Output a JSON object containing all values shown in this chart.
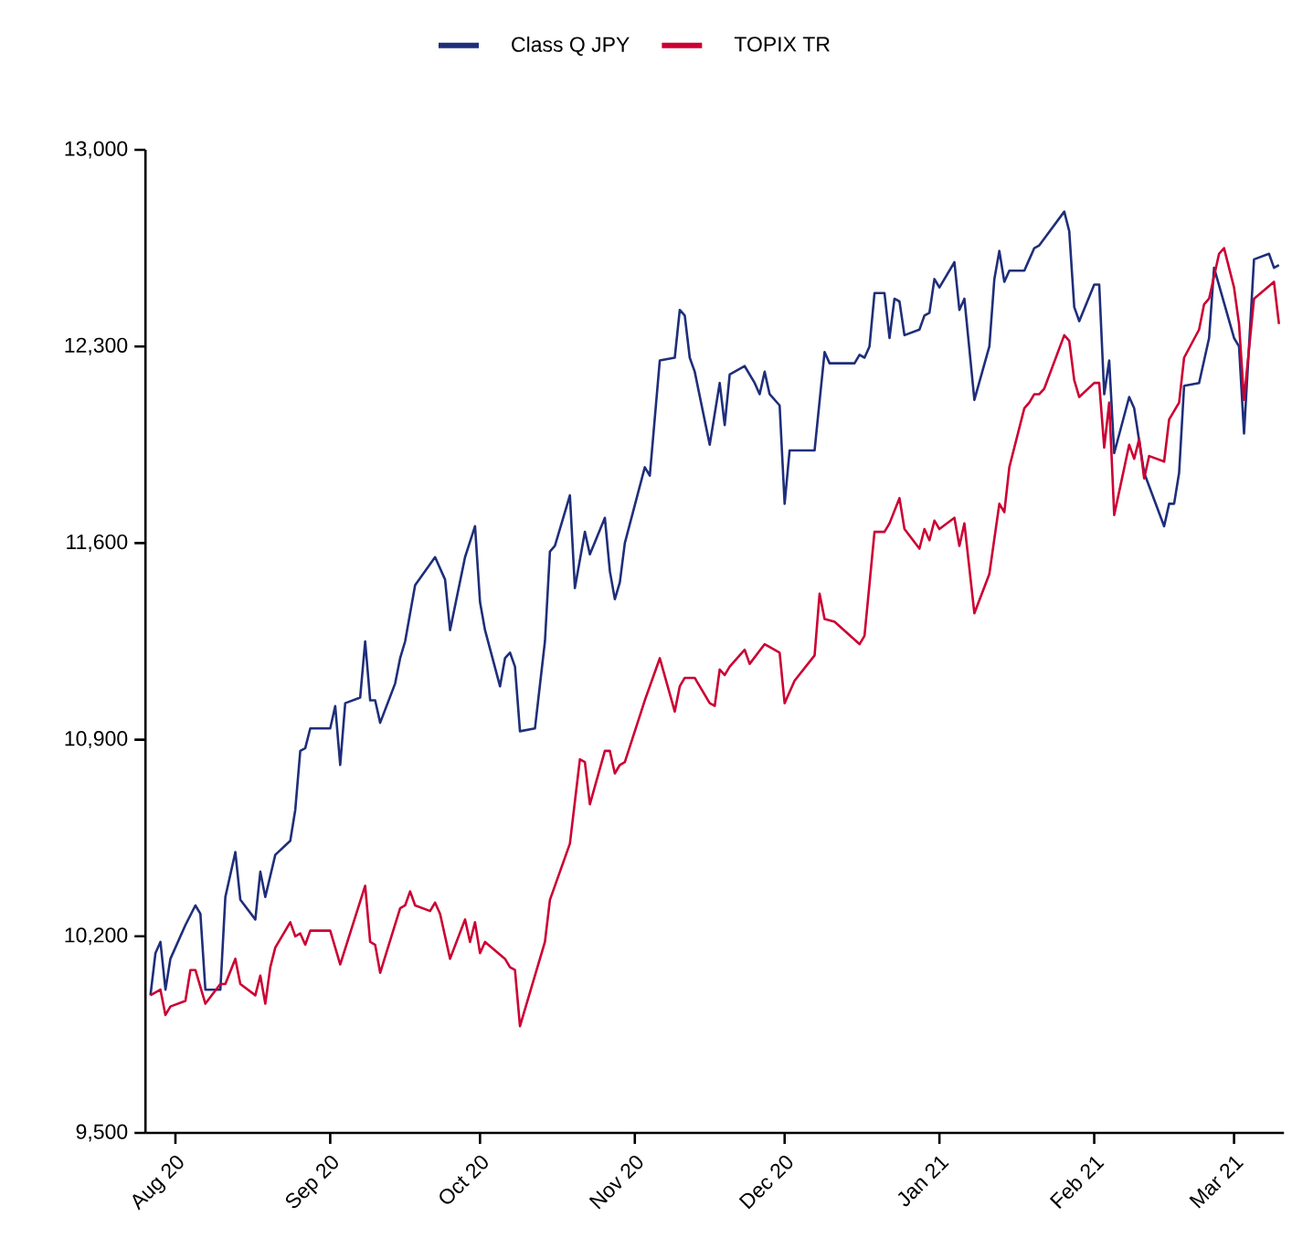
{
  "chart_data": {
    "type": "line",
    "legend": "top",
    "xlim": [
      "2020-07-26",
      "2021-03-11"
    ],
    "xticks": [
      {
        "value": "2020-08-01",
        "label": "Aug 20"
      },
      {
        "value": "2020-09-01",
        "label": "Sep 20"
      },
      {
        "value": "2020-10-01",
        "label": "Oct 20"
      },
      {
        "value": "2020-11-01",
        "label": "Nov 20"
      },
      {
        "value": "2020-12-01",
        "label": "Dec 20"
      },
      {
        "value": "2021-01-01",
        "label": "Jan 21"
      },
      {
        "value": "2021-02-01",
        "label": "Feb 21"
      },
      {
        "value": "2021-03-01",
        "label": "Mar 21"
      }
    ],
    "ylim": [
      9500,
      13000
    ],
    "yticks": [
      {
        "value": 9500,
        "label": "9,500"
      },
      {
        "value": 10200,
        "label": "10,200"
      },
      {
        "value": 10900,
        "label": "10,900"
      },
      {
        "value": 11600,
        "label": "11,600"
      },
      {
        "value": 12300,
        "label": "12,300"
      },
      {
        "value": 13000,
        "label": "13,000"
      }
    ],
    "series": [
      {
        "name": "Class Q JPY",
        "color": "#1f2e7a",
        "x": [
          "2020-07-27",
          "2020-07-28",
          "2020-07-29",
          "2020-07-30",
          "2020-07-31",
          "2020-08-03",
          "2020-08-05",
          "2020-08-06",
          "2020-08-07",
          "2020-08-10",
          "2020-08-11",
          "2020-08-13",
          "2020-08-14",
          "2020-08-17",
          "2020-08-18",
          "2020-08-19",
          "2020-08-21",
          "2020-08-24",
          "2020-08-25",
          "2020-08-26",
          "2020-08-27",
          "2020-08-28",
          "2020-09-01",
          "2020-09-02",
          "2020-09-03",
          "2020-09-04",
          "2020-09-07",
          "2020-09-08",
          "2020-09-09",
          "2020-09-10",
          "2020-09-11",
          "2020-09-14",
          "2020-09-15",
          "2020-09-16",
          "2020-09-18",
          "2020-09-20",
          "2020-09-22",
          "2020-09-24",
          "2020-09-25",
          "2020-09-28",
          "2020-09-30",
          "2020-10-01",
          "2020-10-02",
          "2020-10-05",
          "2020-10-06",
          "2020-10-07",
          "2020-10-08",
          "2020-10-09",
          "2020-10-12",
          "2020-10-14",
          "2020-10-15",
          "2020-10-16",
          "2020-10-19",
          "2020-10-20",
          "2020-10-22",
          "2020-10-23",
          "2020-10-26",
          "2020-10-27",
          "2020-10-28",
          "2020-10-29",
          "2020-10-30",
          "2020-11-03",
          "2020-11-04",
          "2020-11-06",
          "2020-11-09",
          "2020-11-10",
          "2020-11-11",
          "2020-11-12",
          "2020-11-13",
          "2020-11-16",
          "2020-11-18",
          "2020-11-19",
          "2020-11-20",
          "2020-11-23",
          "2020-11-25",
          "2020-11-26",
          "2020-11-27",
          "2020-11-28",
          "2020-11-30",
          "2020-12-01",
          "2020-12-02",
          "2020-12-07",
          "2020-12-09",
          "2020-12-10",
          "2020-12-15",
          "2020-12-16",
          "2020-12-17",
          "2020-12-18",
          "2020-12-19",
          "2020-12-21",
          "2020-12-22",
          "2020-12-23",
          "2020-12-24",
          "2020-12-25",
          "2020-12-28",
          "2020-12-29",
          "2020-12-30",
          "2020-12-31",
          "2021-01-01",
          "2021-01-04",
          "2021-01-05",
          "2021-01-06",
          "2021-01-08",
          "2021-01-11",
          "2021-01-12",
          "2021-01-13",
          "2021-01-14",
          "2021-01-15",
          "2021-01-18",
          "2021-01-19",
          "2021-01-20",
          "2021-01-21",
          "2021-01-26",
          "2021-01-27",
          "2021-01-28",
          "2021-01-29",
          "2021-02-01",
          "2021-02-02",
          "2021-02-03",
          "2021-02-04",
          "2021-02-05",
          "2021-02-08",
          "2021-02-09",
          "2021-02-11",
          "2021-02-15",
          "2021-02-16",
          "2021-02-17",
          "2021-02-18",
          "2021-02-19",
          "2021-02-22",
          "2021-02-24",
          "2021-02-25",
          "2021-03-01",
          "2021-03-02",
          "2021-03-03",
          "2021-03-05",
          "2021-03-08",
          "2021-03-09",
          "2021-03-10"
        ],
        "values": [
          9990,
          10140,
          10180,
          10010,
          10120,
          10240,
          10310,
          10280,
          10010,
          10010,
          10340,
          10500,
          10330,
          10260,
          10430,
          10340,
          10490,
          10540,
          10650,
          10860,
          10870,
          10940,
          10940,
          11020,
          10810,
          11030,
          11050,
          11250,
          11040,
          11040,
          10960,
          11100,
          11190,
          11250,
          11450,
          11500,
          11550,
          11470,
          11290,
          11550,
          11660,
          11390,
          11290,
          11090,
          11190,
          11210,
          11160,
          10930,
          10940,
          11250,
          11570,
          11590,
          11770,
          11440,
          11640,
          11560,
          11690,
          11500,
          11400,
          11460,
          11600,
          11870,
          11840,
          12250,
          12260,
          12430,
          12410,
          12260,
          12210,
          11950,
          12170,
          12020,
          12200,
          12230,
          12170,
          12130,
          12210,
          12130,
          12090,
          11740,
          11930,
          11930,
          12280,
          12240,
          12240,
          12270,
          12260,
          12300,
          12490,
          12490,
          12330,
          12470,
          12460,
          12340,
          12360,
          12410,
          12420,
          12540,
          12510,
          12600,
          12430,
          12470,
          12110,
          12300,
          12540,
          12640,
          12530,
          12570,
          12570,
          12610,
          12650,
          12660,
          12780,
          12710,
          12440,
          12390,
          12520,
          12520,
          12130,
          12250,
          11920,
          12120,
          12080,
          11850,
          11660,
          11740,
          11740,
          11850,
          12160,
          12170,
          12330,
          12580,
          12330,
          12300,
          11990,
          12610,
          12630,
          12580,
          12590
        ]
      },
      {
        "name": "TOPIX TR",
        "color": "#cc0033",
        "x": [
          "2020-07-27",
          "2020-07-29",
          "2020-07-30",
          "2020-07-31",
          "2020-08-03",
          "2020-08-04",
          "2020-08-05",
          "2020-08-07",
          "2020-08-10",
          "2020-08-11",
          "2020-08-13",
          "2020-08-14",
          "2020-08-17",
          "2020-08-18",
          "2020-08-19",
          "2020-08-20",
          "2020-08-21",
          "2020-08-24",
          "2020-08-25",
          "2020-08-26",
          "2020-08-27",
          "2020-08-28",
          "2020-09-01",
          "2020-09-03",
          "2020-09-08",
          "2020-09-09",
          "2020-09-10",
          "2020-09-11",
          "2020-09-15",
          "2020-09-16",
          "2020-09-17",
          "2020-09-18",
          "2020-09-21",
          "2020-09-22",
          "2020-09-23",
          "2020-09-25",
          "2020-09-28",
          "2020-09-29",
          "2020-09-30",
          "2020-10-01",
          "2020-10-02",
          "2020-10-06",
          "2020-10-07",
          "2020-10-08",
          "2020-10-09",
          "2020-10-14",
          "2020-10-15",
          "2020-10-19",
          "2020-10-21",
          "2020-10-22",
          "2020-10-23",
          "2020-10-26",
          "2020-10-27",
          "2020-10-28",
          "2020-10-29",
          "2020-10-30",
          "2020-11-03",
          "2020-11-06",
          "2020-11-09",
          "2020-11-10",
          "2020-11-11",
          "2020-11-13",
          "2020-11-16",
          "2020-11-17",
          "2020-11-18",
          "2020-11-19",
          "2020-11-20",
          "2020-11-23",
          "2020-11-24",
          "2020-11-27",
          "2020-11-28",
          "2020-11-30",
          "2020-12-01",
          "2020-12-03",
          "2020-12-07",
          "2020-12-08",
          "2020-12-09",
          "2020-12-11",
          "2020-12-16",
          "2020-12-17",
          "2020-12-19",
          "2020-12-21",
          "2020-12-22",
          "2020-12-24",
          "2020-12-25",
          "2020-12-28",
          "2020-12-29",
          "2020-12-30",
          "2020-12-31",
          "2021-01-01",
          "2021-01-04",
          "2021-01-05",
          "2021-01-06",
          "2021-01-08",
          "2021-01-11",
          "2021-01-13",
          "2021-01-14",
          "2021-01-15",
          "2021-01-18",
          "2021-01-19",
          "2021-01-20",
          "2021-01-21",
          "2021-01-22",
          "2021-01-26",
          "2021-01-27",
          "2021-01-28",
          "2021-01-29",
          "2021-02-01",
          "2021-02-02",
          "2021-02-03",
          "2021-02-04",
          "2021-02-05",
          "2021-02-08",
          "2021-02-09",
          "2021-02-10",
          "2021-02-11",
          "2021-02-12",
          "2021-02-15",
          "2021-02-16",
          "2021-02-18",
          "2021-02-19",
          "2021-02-22",
          "2021-02-23",
          "2021-02-24",
          "2021-02-26",
          "2021-02-27",
          "2021-03-01",
          "2021-03-02",
          "2021-03-03",
          "2021-03-05",
          "2021-03-09",
          "2021-03-10"
        ],
        "values": [
          9990,
          10010,
          9920,
          9950,
          9970,
          10080,
          10080,
          9960,
          10030,
          10030,
          10120,
          10030,
          9990,
          10060,
          9960,
          10090,
          10160,
          10250,
          10200,
          10210,
          10170,
          10220,
          10220,
          10100,
          10380,
          10180,
          10170,
          10070,
          10300,
          10310,
          10360,
          10310,
          10290,
          10320,
          10280,
          10120,
          10260,
          10180,
          10250,
          10140,
          10180,
          10120,
          10090,
          10080,
          9880,
          10180,
          10330,
          10530,
          10830,
          10820,
          10670,
          10860,
          10860,
          10780,
          10810,
          10820,
          11040,
          11190,
          11000,
          11090,
          11120,
          11120,
          11030,
          11020,
          11150,
          11130,
          11160,
          11220,
          11170,
          11240,
          11230,
          11210,
          11030,
          11110,
          11200,
          11420,
          11330,
          11320,
          11240,
          11270,
          11640,
          11640,
          11670,
          11760,
          11650,
          11580,
          11650,
          11610,
          11680,
          11650,
          11690,
          11590,
          11670,
          11350,
          11490,
          11740,
          11710,
          11870,
          12080,
          12100,
          12130,
          12130,
          12150,
          12340,
          12320,
          12180,
          12120,
          12170,
          12170,
          11940,
          12100,
          11700,
          11950,
          11900,
          11970,
          11830,
          11910,
          11890,
          12040,
          12100,
          12260,
          12360,
          12450,
          12470,
          12630,
          12650,
          12510,
          12380,
          12110,
          12470,
          12530,
          12380
        ]
      }
    ]
  }
}
